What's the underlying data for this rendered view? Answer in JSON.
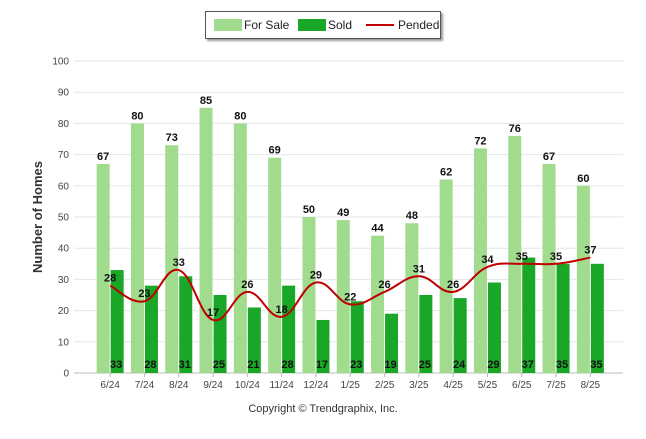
{
  "chart_data": {
    "type": "bar",
    "categories": [
      "6/24",
      "7/24",
      "8/24",
      "9/24",
      "10/24",
      "11/24",
      "12/24",
      "1/25",
      "2/25",
      "3/25",
      "4/25",
      "5/25",
      "6/25",
      "7/25",
      "8/25"
    ],
    "series": [
      {
        "name": "For Sale",
        "type": "bar",
        "color": "#a0db8e",
        "values": [
          67,
          80,
          73,
          85,
          80,
          69,
          50,
          49,
          44,
          48,
          62,
          72,
          76,
          67,
          60
        ]
      },
      {
        "name": "Sold",
        "type": "bar",
        "color": "#1aa626",
        "values": [
          33,
          28,
          31,
          25,
          21,
          28,
          17,
          23,
          19,
          25,
          24,
          29,
          37,
          35,
          35
        ]
      },
      {
        "name": "Pended",
        "type": "line",
        "color": "#c00000",
        "values": [
          28,
          23,
          33,
          17,
          26,
          18,
          29,
          22,
          26,
          31,
          26,
          34,
          35,
          35,
          37
        ]
      }
    ],
    "ylabel": "Number of Homes",
    "xlabel": "",
    "ylim": [
      0,
      100
    ],
    "yticks": [
      0,
      10,
      20,
      30,
      40,
      50,
      60,
      70,
      80,
      90,
      100
    ],
    "grid": true,
    "legend": "top-center"
  },
  "footer": {
    "copyright": "Copyright © Trendgraphix, Inc."
  }
}
